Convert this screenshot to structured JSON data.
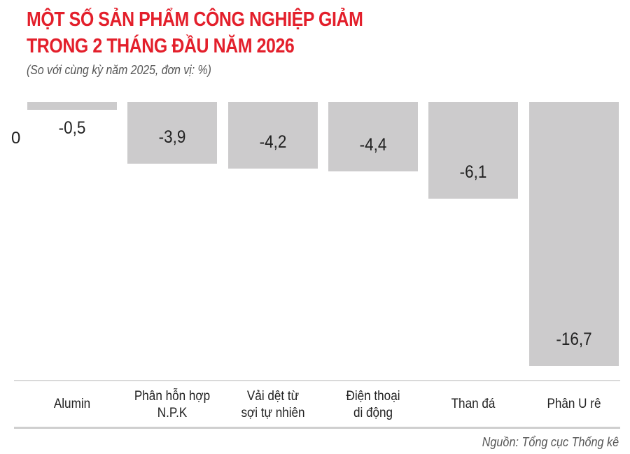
{
  "header": {
    "title_line1": "MỘT SỐ SẢN PHẨM CÔNG NGHIỆP GIẢM",
    "title_line2": "TRONG 2 THÁNG ĐẦU NĂM 2026",
    "subtitle": "(So với cùng kỳ năm 2025, đơn vị: %)"
  },
  "axis": {
    "zero_label": "0"
  },
  "footer": {
    "source": "Nguồn: Tổng cục Thống kê"
  },
  "colors": {
    "title": "#e31f2b",
    "bar": "#cccbcc"
  },
  "chart_data": {
    "type": "bar",
    "title": "MỘT SỐ SẢN PHẨM CÔNG NGHIỆP GIẢM TRONG 2 THÁNG ĐẦU NĂM 2026",
    "subtitle": "(So với cùng kỳ năm 2025, đơn vị: %)",
    "categories": [
      "Alumin",
      "Phân hỗn hợp N.P.K",
      "Vải dệt từ sợi tự nhiên",
      "Điện thoại di động",
      "Than đá",
      "Phân U rê"
    ],
    "category_lines": [
      [
        "Alumin"
      ],
      [
        "Phân hỗn hợp",
        "N.P.K"
      ],
      [
        "Vải dệt từ",
        "sợi tự nhiên"
      ],
      [
        "Điện thoại",
        "di động"
      ],
      [
        "Than đá"
      ],
      [
        "Phân U rê"
      ]
    ],
    "values": [
      -0.5,
      -3.9,
      -4.2,
      -4.4,
      -6.1,
      -16.7
    ],
    "value_labels": [
      "-0,5",
      "-3,9",
      "-4,2",
      "-4,4",
      "-6,1",
      "-16,7"
    ],
    "xlabel": "",
    "ylabel": "%",
    "ylim": [
      -16.7,
      0
    ],
    "grid": false,
    "legend": "none",
    "source": "Nguồn: Tổng cục Thống kê"
  }
}
